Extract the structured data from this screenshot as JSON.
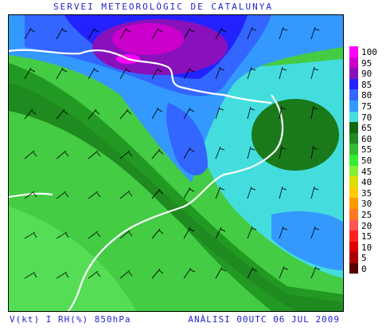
{
  "header": {
    "title": "SERVEI METEOROLÒGIC DE CATALUNYA"
  },
  "footer": {
    "left": "V(kt) I RH(%) 850hPa",
    "right": "ANÀLISI 00UTC 06 JUL 2009"
  },
  "legend": [
    {
      "label": "100",
      "color": "#ff00ff"
    },
    {
      "label": "95",
      "color": "#cc00cc"
    },
    {
      "label": "90",
      "color": "#8811bb"
    },
    {
      "label": "85",
      "color": "#2222ff"
    },
    {
      "label": "80",
      "color": "#3366ff"
    },
    {
      "label": "75",
      "color": "#3399ff"
    },
    {
      "label": "70",
      "color": "#44dddd"
    },
    {
      "label": "65",
      "color": "#116611"
    },
    {
      "label": "60",
      "color": "#228822"
    },
    {
      "label": "55",
      "color": "#33bb33"
    },
    {
      "label": "50",
      "color": "#33ee33"
    },
    {
      "label": "45",
      "color": "#88ee33"
    },
    {
      "label": "40",
      "color": "#dddd00"
    },
    {
      "label": "35",
      "color": "#ffcc00"
    },
    {
      "label": "30",
      "color": "#ff9900"
    },
    {
      "label": "25",
      "color": "#ff7722"
    },
    {
      "label": "20",
      "color": "#ff5555"
    },
    {
      "label": "15",
      "color": "#ff2222"
    },
    {
      "label": "10",
      "color": "#dd0000"
    },
    {
      "label": "5",
      "color": "#aa0000"
    },
    {
      "label": "0",
      "color": "#550000"
    }
  ]
}
